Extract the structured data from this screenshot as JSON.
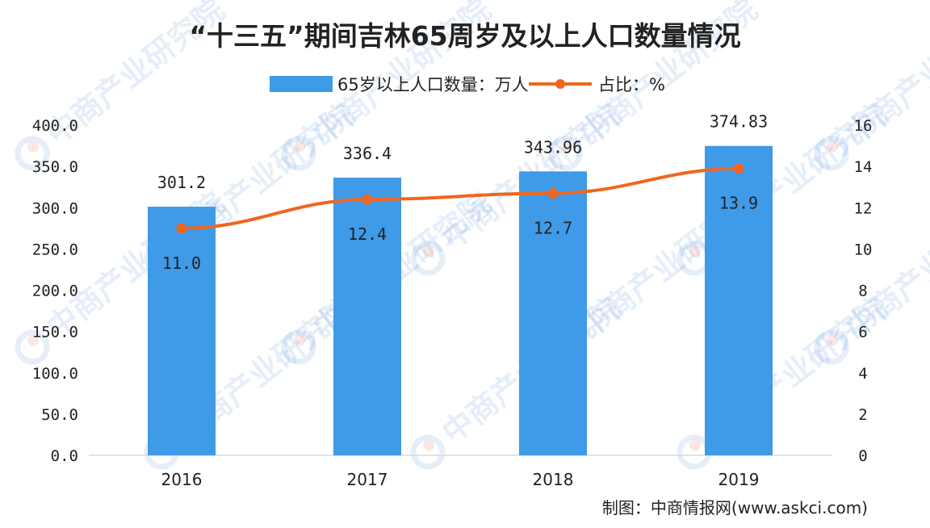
{
  "chart_data": {
    "type": "bar",
    "title": "“十三五”期间吉林65周岁及以上人口数量情况",
    "categories": [
      "2016",
      "2017",
      "2018",
      "2019"
    ],
    "series": [
      {
        "name": "65岁以上人口数量：万人",
        "type": "bar",
        "axis": "left",
        "values": [
          301.2,
          336.4,
          343.96,
          374.83
        ],
        "labels": [
          "301.2",
          "336.4",
          "343.96",
          "374.83"
        ],
        "color": "#3f9ae8"
      },
      {
        "name": "占比：%",
        "type": "line",
        "axis": "right",
        "values": [
          11.0,
          12.4,
          12.7,
          13.9
        ],
        "labels": [
          "11.0",
          "12.4",
          "12.7",
          "13.9"
        ],
        "color": "#f0661f"
      }
    ],
    "y_left": {
      "range": [
        0,
        400
      ],
      "ticks": [
        "0.0",
        "50.0",
        "100.0",
        "150.0",
        "200.0",
        "250.0",
        "300.0",
        "350.0",
        "400.0"
      ]
    },
    "y_right": {
      "range": [
        0,
        16
      ],
      "ticks": [
        "0",
        "2",
        "4",
        "6",
        "8",
        "10",
        "12",
        "14",
        "16"
      ]
    },
    "grid": false,
    "legend_position": "top"
  },
  "source": "制图：中商情报网(www.askci.com)",
  "watermark": "中商产业研究院"
}
